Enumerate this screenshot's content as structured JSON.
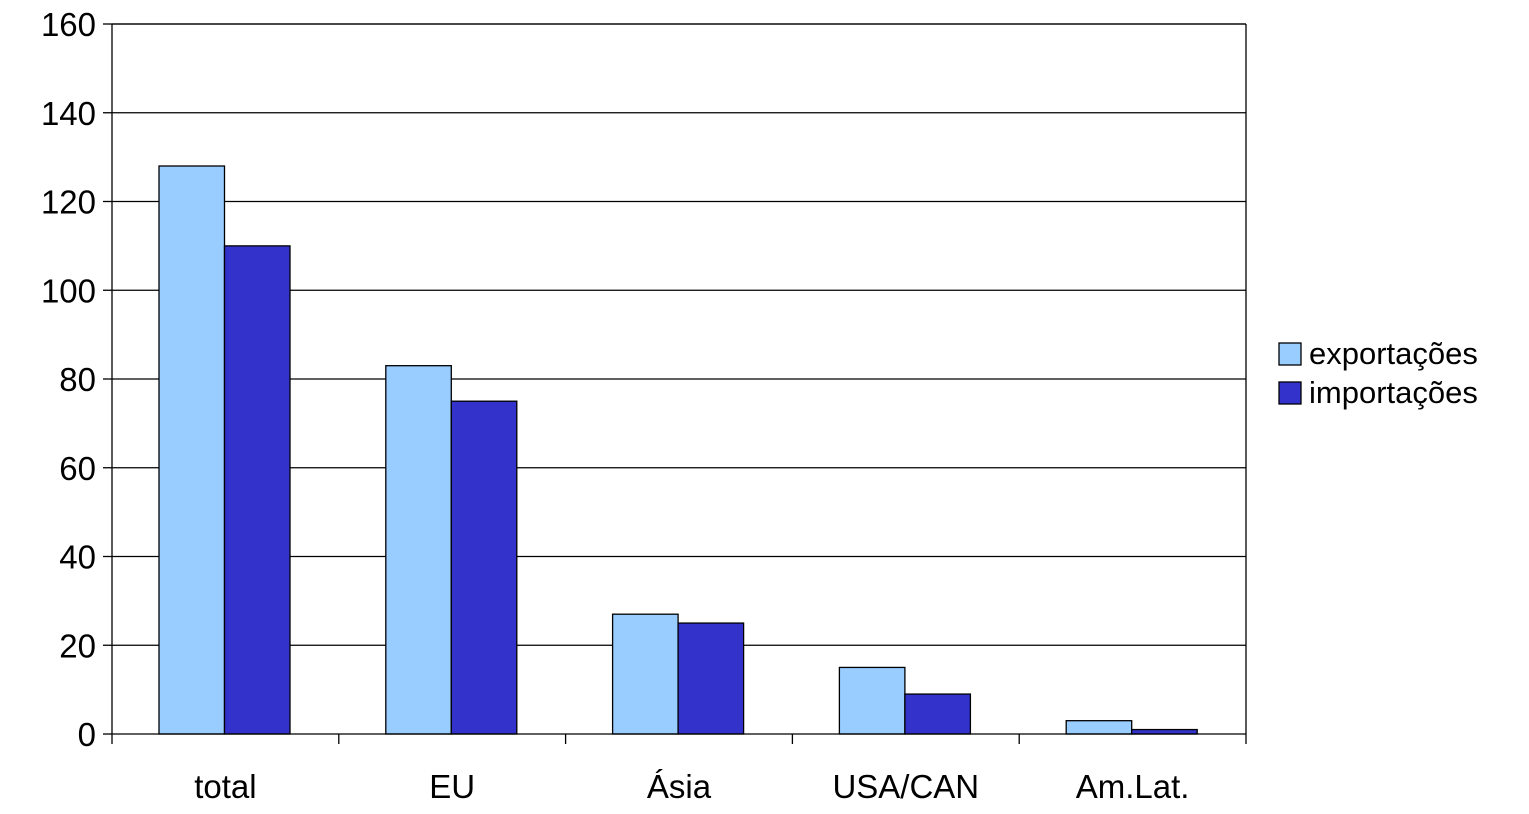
{
  "chart_data": {
    "type": "bar",
    "title": "",
    "xlabel": "",
    "ylabel": "",
    "categories": [
      "total",
      "EU",
      "Ásia",
      "USA/CAN",
      "Am.Lat."
    ],
    "series": [
      {
        "name": "exportações",
        "values": [
          128,
          83,
          27,
          15,
          3
        ],
        "color": "#99ccff"
      },
      {
        "name": "importações",
        "values": [
          110,
          75,
          25,
          9,
          1
        ],
        "color": "#3333cc"
      }
    ],
    "ylim": [
      0,
      160
    ],
    "y_ticks": [
      0,
      20,
      40,
      60,
      80,
      100,
      120,
      140,
      160
    ],
    "grid": true,
    "legend": "right"
  }
}
